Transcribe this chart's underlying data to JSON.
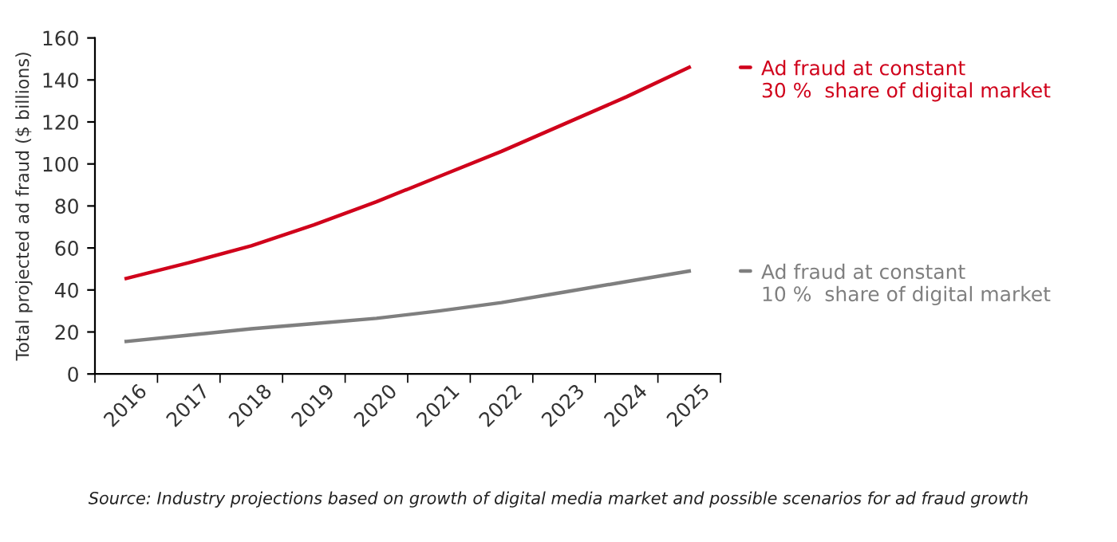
{
  "chart_data": {
    "type": "line",
    "ylabel": "Total projected ad fraud ($ billions)",
    "categories": [
      "2016",
      "2017",
      "2018",
      "2019",
      "2020",
      "2021",
      "2022",
      "2023",
      "2024",
      "2025"
    ],
    "series": [
      {
        "name": "Ad fraud at constant\n30 %  share of digital market",
        "color": "#d0021b",
        "values": [
          45.5,
          53,
          61,
          71,
          82,
          94,
          106,
          119,
          132,
          146
        ]
      },
      {
        "name": "Ad fraud at constant\n10 %  share of digital market",
        "color": "#7f7f7f",
        "values": [
          15.5,
          18.5,
          21.5,
          24,
          26.5,
          30,
          34,
          39,
          44,
          49
        ]
      }
    ],
    "ylim": [
      0,
      160
    ],
    "yticks": [
      0,
      20,
      40,
      60,
      80,
      100,
      120,
      140,
      160
    ],
    "grid": false,
    "legend": "right",
    "marker": "none",
    "line_style": "solid",
    "annotations": [
      "Source: Industry projections based on growth of digital media market and possible scenarios for ad fraud growth"
    ]
  }
}
